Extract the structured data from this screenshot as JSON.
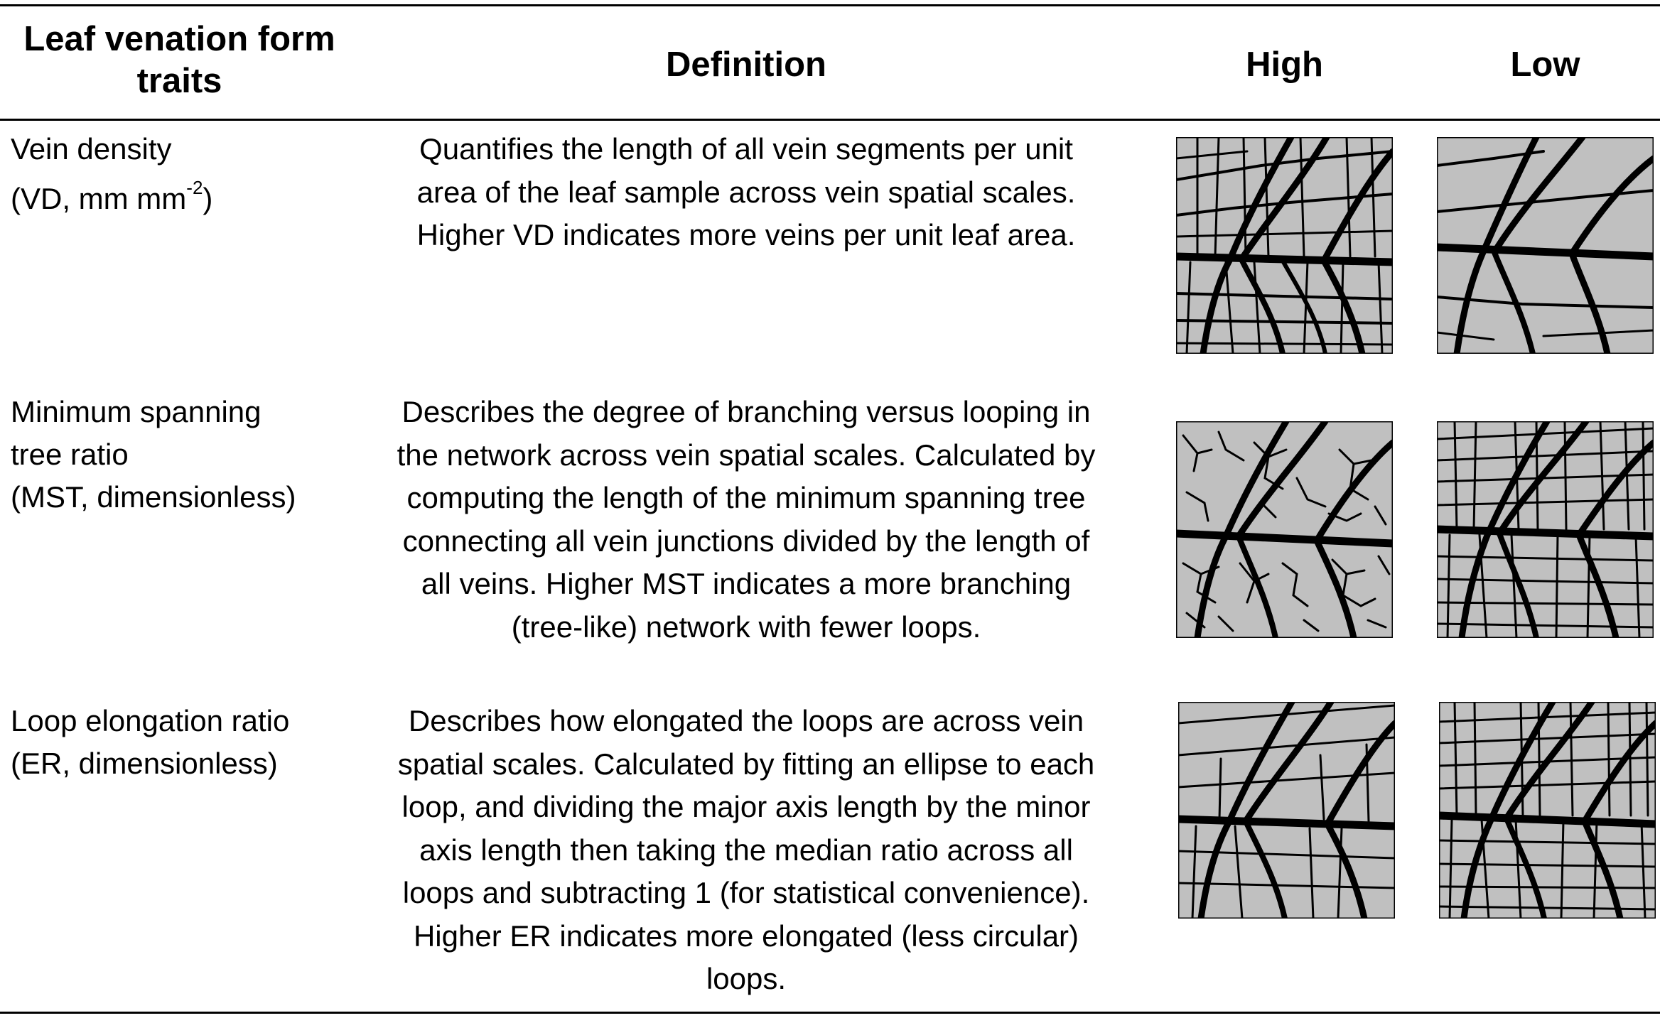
{
  "table": {
    "header": {
      "trait_line1": "Leaf venation form",
      "trait_line2": "traits",
      "definition": "Definition",
      "high": "High",
      "low": "Low"
    },
    "rows": [
      {
        "trait_lines": [
          "Vein density",
          "(VD, mm mm",
          "-2",
          ")"
        ],
        "definition_lines": [
          "Quantifies the length of all vein segments per unit",
          "area of the leaf sample across vein spatial scales.",
          "Higher VD indicates more veins per unit leaf area."
        ],
        "high_icon": "dense-vein-network-icon",
        "low_icon": "sparse-vein-network-icon"
      },
      {
        "trait_lines": [
          "Minimum spanning",
          "tree ratio",
          "(MST, dimensionless)"
        ],
        "definition_lines": [
          "Describes the degree of branching versus looping in",
          "the network across vein spatial scales. Calculated by",
          "computing the length of the minimum spanning tree",
          "connecting all vein junctions divided by the length of",
          "all veins. Higher MST indicates a more branching",
          "(tree-like) network with fewer loops."
        ],
        "high_icon": "branching-vein-network-icon",
        "low_icon": "looped-vein-network-icon"
      },
      {
        "trait_lines": [
          "Loop elongation ratio",
          "(ER, dimensionless)"
        ],
        "definition_lines": [
          "Describes how elongated the loops are across vein",
          "spatial scales. Calculated by fitting an ellipse to each",
          "loop, and dividing the major axis length by the minor",
          "axis length then taking the median ratio across all",
          "loops and subtracting 1 (for statistical convenience).",
          "Higher ER indicates more elongated (less circular)",
          "loops."
        ],
        "high_icon": "elongated-loop-network-icon",
        "low_icon": "circular-loop-network-icon"
      }
    ]
  },
  "colors": {
    "leaf_fill": "#c0c0c0",
    "vein": "#000000",
    "background": "#ffffff"
  }
}
